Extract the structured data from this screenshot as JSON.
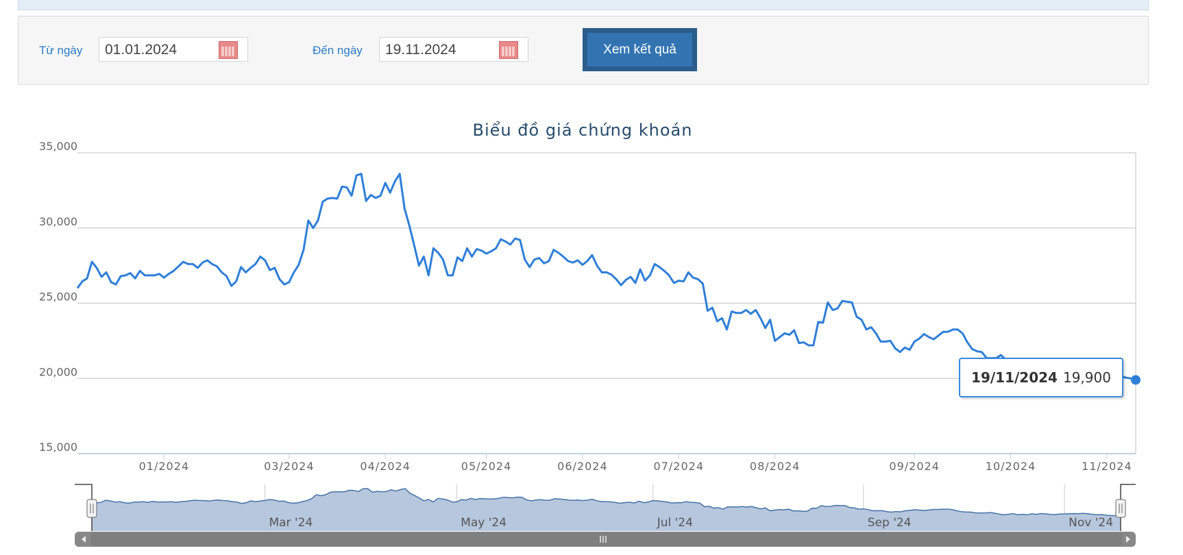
{
  "filter": {
    "from_label": "Từ ngày",
    "from_value": "01.01.2024",
    "to_label": "Đến ngày",
    "to_value": "19.11.2024",
    "submit_label": "Xem kết quả"
  },
  "colors": {
    "line": "#2f7ed8",
    "navigator_fill": "#b3c4dc",
    "navigator_line": "#4572a7",
    "button": "#3274b2"
  },
  "chart_data": {
    "type": "line",
    "title": "Biểu đồ giá chứng khoán",
    "ylim": [
      15000,
      35000
    ],
    "yticks": [
      "15,000",
      "20,000",
      "25,000",
      "30,000",
      "35,000"
    ],
    "ytick_values": [
      15000,
      20000,
      25000,
      30000,
      35000
    ],
    "grid": true,
    "x_ticks": [
      {
        "label": "01/2024",
        "point": 18
      },
      {
        "label": "03/2024",
        "point": 44
      },
      {
        "label": "04/2024",
        "point": 64
      },
      {
        "label": "05/2024",
        "point": 85
      },
      {
        "label": "06/2024",
        "point": 105
      },
      {
        "label": "07/2024",
        "point": 125
      },
      {
        "label": "08/2024",
        "point": 145
      },
      {
        "label": "09/2024",
        "point": 174
      },
      {
        "label": "10/2024",
        "point": 194
      },
      {
        "label": "11/2024",
        "point": 214
      }
    ],
    "navigator_ticks": [
      {
        "label": "Mar '24",
        "point": 37
      },
      {
        "label": "May '24",
        "point": 78
      },
      {
        "label": "Jul '24",
        "point": 120
      },
      {
        "label": "Sep '24",
        "point": 165
      },
      {
        "label": "Nov '24",
        "point": 208
      }
    ],
    "values": [
      26000,
      26450,
      26650,
      27750,
      27350,
      26750,
      27050,
      26400,
      26250,
      26800,
      26850,
      27000,
      26650,
      27150,
      26850,
      26850,
      26850,
      26950,
      26700,
      26950,
      27150,
      27450,
      27750,
      27600,
      27600,
      27350,
      27700,
      27850,
      27600,
      27450,
      27050,
      26800,
      26150,
      26450,
      27400,
      27050,
      27350,
      27600,
      28100,
      27850,
      27200,
      27350,
      26600,
      26250,
      26400,
      27050,
      27550,
      28550,
      30500,
      30000,
      30500,
      31750,
      31950,
      32000,
      31950,
      32750,
      32700,
      32150,
      33500,
      33600,
      31800,
      32200,
      32000,
      32150,
      33000,
      32350,
      33100,
      33600,
      31300,
      30150,
      28850,
      27500,
      28100,
      26850,
      28650,
      28350,
      27900,
      26850,
      26850,
      28050,
      27800,
      28650,
      28100,
      28600,
      28500,
      28300,
      28450,
      28650,
      29250,
      29100,
      28900,
      29300,
      29200,
      27900,
      27400,
      27900,
      28000,
      27650,
      27800,
      28550,
      28350,
      28100,
      27800,
      27700,
      27850,
      27550,
      27800,
      28200,
      27500,
      27050,
      27050,
      26900,
      26600,
      26200,
      26550,
      26750,
      26350,
      27250,
      26500,
      26850,
      27600,
      27400,
      27150,
      26850,
      26350,
      26500,
      26450,
      27050,
      26700,
      26600,
      26300,
      24500,
      24700,
      23800,
      24000,
      23250,
      24450,
      24350,
      24350,
      24550,
      24300,
      24550,
      24000,
      23350,
      23900,
      22500,
      22750,
      23000,
      22900,
      23200,
      22350,
      22400,
      22200,
      22200,
      23750,
      23700,
      25050,
      24550,
      24650,
      25150,
      25100,
      25050,
      24100,
      23900,
      23250,
      23400,
      23000,
      22450,
      22450,
      22500,
      22000,
      21750,
      22050,
      21900,
      22450,
      22650,
      22950,
      22750,
      22600,
      22850,
      23100,
      23100,
      23250,
      23250,
      23000,
      22400,
      21950,
      21800,
      21750,
      21350,
      21350,
      21350,
      21550,
      21250,
      20750,
      20450,
      20650,
      21000,
      20450,
      20650,
      20400,
      20900,
      20650,
      21050,
      20850,
      20600,
      20550,
      20750,
      20850,
      20950,
      21050,
      21000,
      21150,
      20950,
      20650,
      20400,
      20550,
      20150,
      20050,
      20000,
      19900
    ],
    "tooltip": {
      "date": "19/11/2024",
      "value": "19,900"
    }
  }
}
